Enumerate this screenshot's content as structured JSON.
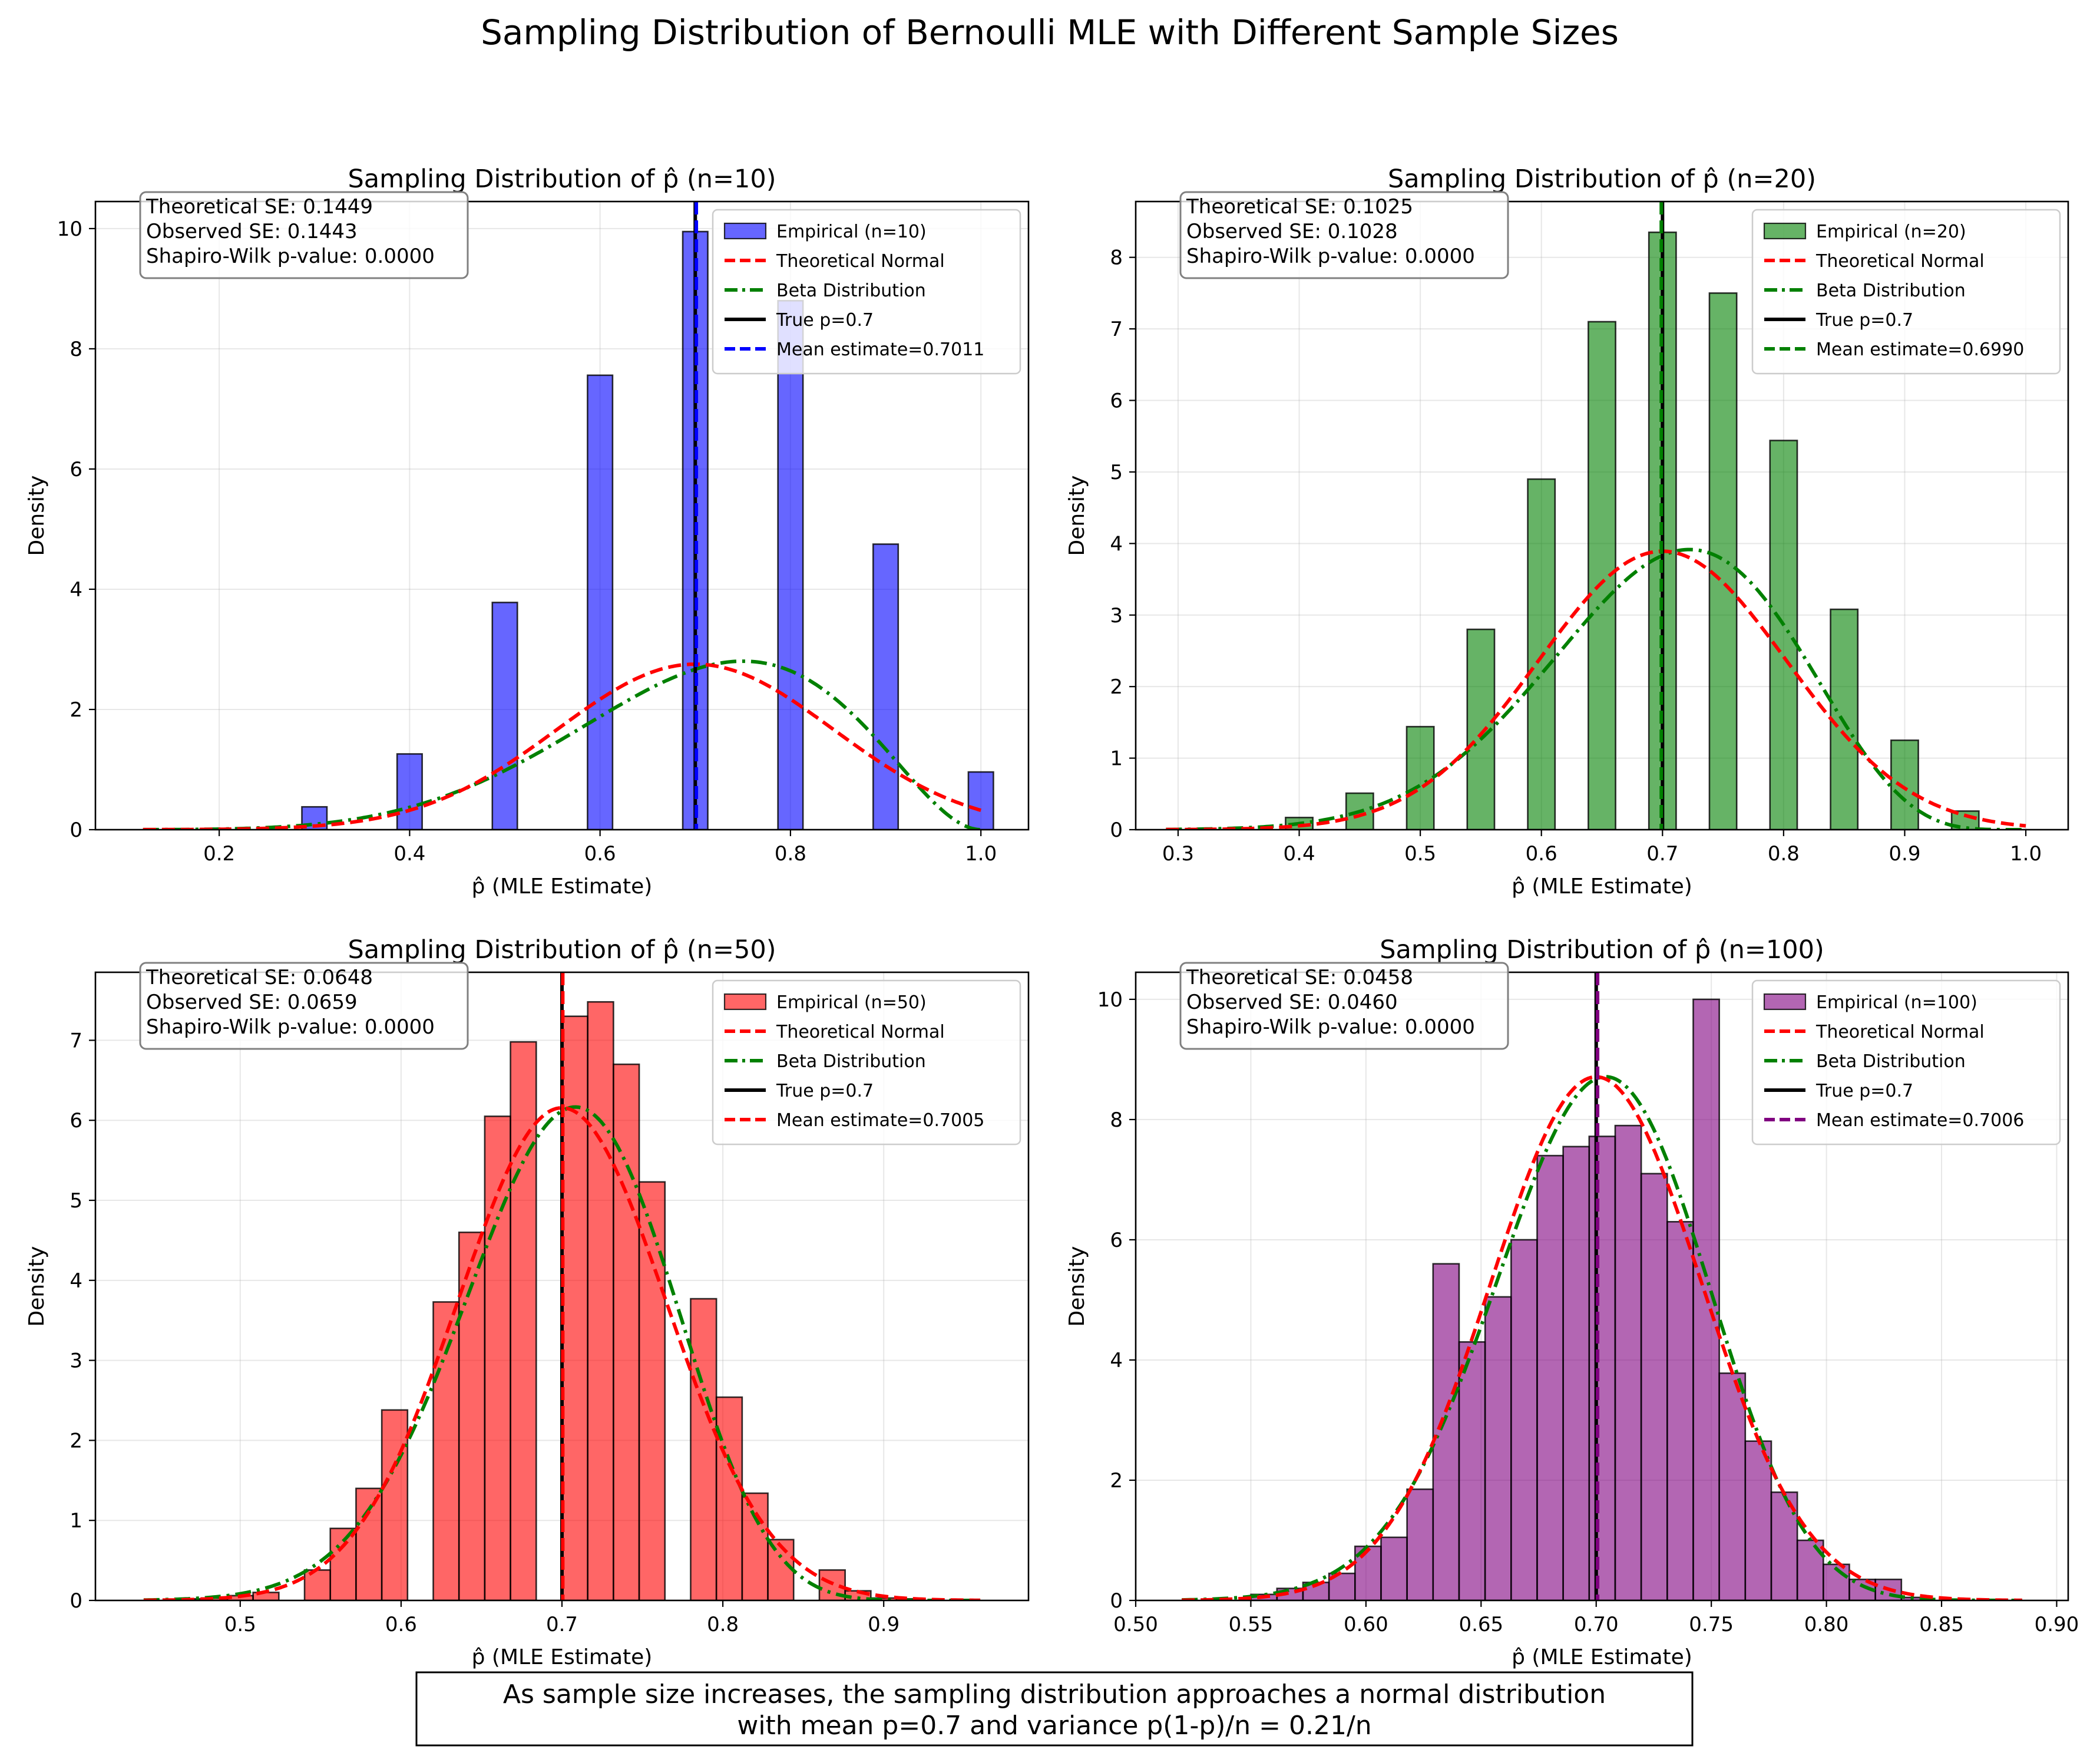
{
  "figure": {
    "title": "Sampling Distribution of Bernoulli MLE with Different Sample Sizes",
    "footnote_line1": "As sample size increases, the sampling distribution approaches a normal distribution",
    "footnote_line2": "with mean p=0.7 and variance p(1-p)/n = 0.21/n"
  },
  "colors": {
    "normal_curve": "#ff0000",
    "beta_curve": "#008000",
    "true_p_line": "#000000",
    "grid": "#b0b0b0"
  },
  "chart_data": [
    {
      "type": "bar",
      "title": "Sampling Distribution of p̂ (n=10)",
      "xlabel": "p̂ (MLE Estimate)",
      "ylabel": "Density",
      "n": 10,
      "p": 0.7,
      "bar_color": "#0000ff",
      "mean_line_color": "#0000ff",
      "xlim": [
        0.07,
        1.05
      ],
      "ylim": [
        0,
        10.45
      ],
      "xticks": [
        0.2,
        0.4,
        0.6,
        0.8,
        1.0
      ],
      "xtick_labels": [
        "0.2",
        "0.4",
        "0.6",
        "0.8",
        "1.0"
      ],
      "yticks": [
        0,
        2,
        4,
        6,
        8,
        10
      ],
      "ytick_labels": [
        "0",
        "2",
        "4",
        "6",
        "8",
        "10"
      ],
      "bin_width": 0.0263,
      "bins": [
        {
          "x": 0.3,
          "v": 0.38
        },
        {
          "x": 0.4,
          "v": 1.26
        },
        {
          "x": 0.5,
          "v": 3.78
        },
        {
          "x": 0.6,
          "v": 7.56
        },
        {
          "x": 0.7,
          "v": 9.95
        },
        {
          "x": 0.8,
          "v": 8.8
        },
        {
          "x": 0.9,
          "v": 4.75
        },
        {
          "x": 1.0,
          "v": 0.96
        }
      ],
      "normal_sd": 0.1449,
      "beta_ab": [
        7,
        3
      ],
      "curve_range": [
        0.12,
        1.0
      ],
      "legend": {
        "empirical": "Empirical (n=10)",
        "normal": "Theoretical Normal",
        "beta": "Beta Distribution",
        "true_p": "True p=0.7",
        "mean_estimate": "Mean estimate=0.7011"
      },
      "mean_estimate": 0.7011,
      "stats": {
        "line1": "Theoretical SE: 0.1449",
        "line2": "Observed SE: 0.1443",
        "line3": "Shapiro-Wilk p-value: 0.0000"
      }
    },
    {
      "type": "bar",
      "title": "Sampling Distribution of p̂ (n=20)",
      "xlabel": "p̂ (MLE Estimate)",
      "ylabel": "Density",
      "n": 20,
      "p": 0.7,
      "bar_color": "#008000",
      "mean_line_color": "#008000",
      "xlim": [
        0.265,
        1.035
      ],
      "ylim": [
        0,
        8.78
      ],
      "xticks": [
        0.3,
        0.4,
        0.5,
        0.6,
        0.7,
        0.8,
        0.9,
        1.0
      ],
      "xtick_labels": [
        "0.3",
        "0.4",
        "0.5",
        "0.6",
        "0.7",
        "0.8",
        "0.9",
        "1.0"
      ],
      "yticks": [
        0,
        1,
        2,
        3,
        4,
        5,
        6,
        7,
        8
      ],
      "ytick_labels": [
        "0",
        "1",
        "2",
        "3",
        "4",
        "5",
        "6",
        "7",
        "8"
      ],
      "bin_width": 0.0225,
      "bins": [
        {
          "x": 0.4,
          "v": 0.17
        },
        {
          "x": 0.45,
          "v": 0.51
        },
        {
          "x": 0.5,
          "v": 1.44
        },
        {
          "x": 0.55,
          "v": 2.8
        },
        {
          "x": 0.6,
          "v": 4.9
        },
        {
          "x": 0.65,
          "v": 7.1
        },
        {
          "x": 0.7,
          "v": 8.35
        },
        {
          "x": 0.75,
          "v": 7.5
        },
        {
          "x": 0.8,
          "v": 5.44
        },
        {
          "x": 0.85,
          "v": 3.08
        },
        {
          "x": 0.9,
          "v": 1.25
        },
        {
          "x": 0.95,
          "v": 0.26
        }
      ],
      "normal_sd": 0.1025,
      "beta_ab": [
        14,
        6
      ],
      "curve_range": [
        0.29,
        1.0
      ],
      "legend": {
        "empirical": "Empirical (n=20)",
        "normal": "Theoretical Normal",
        "beta": "Beta Distribution",
        "true_p": "True p=0.7",
        "mean_estimate": "Mean estimate=0.6990"
      },
      "mean_estimate": 0.699,
      "stats": {
        "line1": "Theoretical SE: 0.1025",
        "line2": "Observed SE: 0.1028",
        "line3": "Shapiro-Wilk p-value: 0.0000"
      }
    },
    {
      "type": "bar",
      "title": "Sampling Distribution of p̂ (n=50)",
      "xlabel": "p̂ (MLE Estimate)",
      "ylabel": "Density",
      "n": 50,
      "p": 0.7,
      "bar_color": "#ff0000",
      "mean_line_color": "#ff0000",
      "xlim": [
        0.41,
        0.99
      ],
      "ylim": [
        0,
        7.85
      ],
      "xticks": [
        0.5,
        0.6,
        0.7,
        0.8,
        0.9
      ],
      "xtick_labels": [
        "0.5",
        "0.6",
        "0.7",
        "0.8",
        "0.9"
      ],
      "yticks": [
        0,
        1,
        2,
        3,
        4,
        5,
        6,
        7
      ],
      "ytick_labels": [
        "0",
        "1",
        "2",
        "3",
        "4",
        "5",
        "6",
        "7"
      ],
      "bin_width": 0.016,
      "bins": [
        {
          "x": 0.468,
          "v": 0.02
        },
        {
          "x": 0.484,
          "v": 0.03
        },
        {
          "x": 0.5,
          "v": 0.06
        },
        {
          "x": 0.516,
          "v": 0.1
        },
        {
          "x": 0.548,
          "v": 0.38
        },
        {
          "x": 0.564,
          "v": 0.9
        },
        {
          "x": 0.58,
          "v": 1.4
        },
        {
          "x": 0.596,
          "v": 2.38
        },
        {
          "x": 0.628,
          "v": 3.73
        },
        {
          "x": 0.644,
          "v": 4.6
        },
        {
          "x": 0.66,
          "v": 6.05
        },
        {
          "x": 0.676,
          "v": 6.98
        },
        {
          "x": 0.708,
          "v": 7.3
        },
        {
          "x": 0.724,
          "v": 7.48
        },
        {
          "x": 0.74,
          "v": 6.7
        },
        {
          "x": 0.756,
          "v": 5.23
        },
        {
          "x": 0.788,
          "v": 3.77
        },
        {
          "x": 0.804,
          "v": 2.54
        },
        {
          "x": 0.82,
          "v": 1.34
        },
        {
          "x": 0.836,
          "v": 0.76
        },
        {
          "x": 0.868,
          "v": 0.38
        },
        {
          "x": 0.884,
          "v": 0.12
        },
        {
          "x": 0.9,
          "v": 0.03
        },
        {
          "x": 0.916,
          "v": 0.02
        }
      ],
      "normal_sd": 0.0648,
      "beta_ab": [
        35,
        15
      ],
      "curve_range": [
        0.44,
        0.96
      ],
      "legend": {
        "empirical": "Empirical (n=50)",
        "normal": "Theoretical Normal",
        "beta": "Beta Distribution",
        "true_p": "True p=0.7",
        "mean_estimate": "Mean estimate=0.7005"
      },
      "mean_estimate": 0.7005,
      "stats": {
        "line1": "Theoretical SE: 0.0648",
        "line2": "Observed SE: 0.0659",
        "line3": "Shapiro-Wilk p-value: 0.0000"
      }
    },
    {
      "type": "bar",
      "title": "Sampling Distribution of p̂ (n=100)",
      "xlabel": "p̂ (MLE Estimate)",
      "ylabel": "Density",
      "n": 100,
      "p": 0.7,
      "bar_color": "#800080",
      "mean_line_color": "#800080",
      "xlim": [
        0.5,
        0.905
      ],
      "ylim": [
        0,
        10.45
      ],
      "xticks": [
        0.5,
        0.55,
        0.6,
        0.65,
        0.7,
        0.75,
        0.8,
        0.85,
        0.9
      ],
      "xtick_labels": [
        "0.50",
        "0.55",
        "0.60",
        "0.65",
        "0.70",
        "0.75",
        "0.80",
        "0.85",
        "0.90"
      ],
      "yticks": [
        0,
        2,
        4,
        6,
        8,
        10
      ],
      "ytick_labels": [
        "0",
        "2",
        "4",
        "6",
        "8",
        "10"
      ],
      "bin_width": 0.0113,
      "bins": [
        {
          "x": 0.5557,
          "v": 0.1
        },
        {
          "x": 0.567,
          "v": 0.2
        },
        {
          "x": 0.5783,
          "v": 0.3
        },
        {
          "x": 0.5896,
          "v": 0.45
        },
        {
          "x": 0.6009,
          "v": 0.9
        },
        {
          "x": 0.6122,
          "v": 1.05
        },
        {
          "x": 0.6235,
          "v": 1.85
        },
        {
          "x": 0.6348,
          "v": 5.6
        },
        {
          "x": 0.6461,
          "v": 4.3
        },
        {
          "x": 0.6574,
          "v": 5.05
        },
        {
          "x": 0.6687,
          "v": 6.0
        },
        {
          "x": 0.68,
          "v": 7.4
        },
        {
          "x": 0.6913,
          "v": 7.55
        },
        {
          "x": 0.7026,
          "v": 7.72
        },
        {
          "x": 0.7139,
          "v": 7.9
        },
        {
          "x": 0.7252,
          "v": 7.1
        },
        {
          "x": 0.7365,
          "v": 6.3
        },
        {
          "x": 0.7478,
          "v": 10.0
        },
        {
          "x": 0.7591,
          "v": 3.78
        },
        {
          "x": 0.7704,
          "v": 2.65
        },
        {
          "x": 0.7817,
          "v": 1.8
        },
        {
          "x": 0.793,
          "v": 1.0
        },
        {
          "x": 0.8043,
          "v": 0.6
        },
        {
          "x": 0.8156,
          "v": 0.35
        },
        {
          "x": 0.8269,
          "v": 0.35
        },
        {
          "x": 0.8382,
          "v": 0.05
        }
      ],
      "normal_sd": 0.0458,
      "beta_ab": [
        70,
        30
      ],
      "curve_range": [
        0.52,
        0.885
      ],
      "legend": {
        "empirical": "Empirical (n=100)",
        "normal": "Theoretical Normal",
        "beta": "Beta Distribution",
        "true_p": "True p=0.7",
        "mean_estimate": "Mean estimate=0.7006"
      },
      "mean_estimate": 0.7006,
      "stats": {
        "line1": "Theoretical SE: 0.0458",
        "line2": "Observed SE: 0.0460",
        "line3": "Shapiro-Wilk p-value: 0.0000"
      }
    }
  ]
}
